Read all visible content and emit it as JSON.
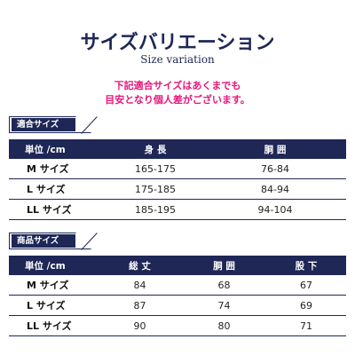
{
  "title": "サイズバリエーション",
  "subtitle": "Size variation",
  "notice": [
    "下記適合サイズはあくまでも",
    "目安となり個人差がございます。"
  ],
  "fit_section": {
    "label": "適合サイズ",
    "headers": [
      "単位 /cm",
      "身 長",
      "胴 囲"
    ],
    "rows": [
      [
        "M サイズ",
        "165-175",
        "76-84"
      ],
      [
        "L サイズ",
        "175-185",
        "84-94"
      ],
      [
        "LL サイズ",
        "185-195",
        "94-104"
      ]
    ]
  },
  "product_section": {
    "label": "商品サイズ",
    "headers": [
      "単位 /cm",
      "総 丈",
      "胴 囲",
      "股 下"
    ],
    "rows": [
      [
        "M サイズ",
        "84",
        "68",
        "67"
      ],
      [
        "L サイズ",
        "87",
        "74",
        "69"
      ],
      [
        "LL サイズ",
        "90",
        "80",
        "71"
      ]
    ]
  },
  "colors": {
    "navy": "#1e2756",
    "accent_pink": "#e4177b"
  }
}
